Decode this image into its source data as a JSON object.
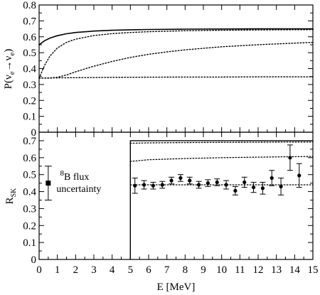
{
  "chart_data": [
    {
      "type": "line",
      "panel": "top",
      "ylabel": "P(ν_e→ν_e)",
      "xlim": [
        0,
        15
      ],
      "ylim": [
        0,
        0.8
      ],
      "yticks": [
        "0",
        "0.1",
        "0.2",
        "0.3",
        "0.4",
        "0.5",
        "0.6",
        "0.7",
        "0.8"
      ],
      "series": [
        {
          "style": "solid",
          "x": [
            0,
            0.3,
            0.6,
            1,
            1.5,
            2,
            3,
            4,
            5,
            6,
            8,
            10,
            12,
            15
          ],
          "y": [
            0.55,
            0.575,
            0.592,
            0.607,
            0.619,
            0.627,
            0.636,
            0.641,
            0.644,
            0.646,
            0.648,
            0.649,
            0.65,
            0.65
          ]
        },
        {
          "style": "dotted",
          "x": [
            0,
            0.3,
            0.6,
            1,
            1.5,
            2,
            3,
            4,
            5,
            6,
            8,
            10,
            12,
            15
          ],
          "y": [
            0.34,
            0.42,
            0.48,
            0.53,
            0.565,
            0.585,
            0.608,
            0.62,
            0.627,
            0.632,
            0.638,
            0.641,
            0.643,
            0.645
          ]
        },
        {
          "style": "dotted",
          "x": [
            0,
            0.5,
            1,
            1.5,
            2,
            3,
            4,
            5,
            6,
            7,
            8,
            10,
            12,
            14,
            15
          ],
          "y": [
            0.34,
            0.34,
            0.345,
            0.36,
            0.38,
            0.415,
            0.445,
            0.47,
            0.49,
            0.505,
            0.518,
            0.537,
            0.55,
            0.56,
            0.565
          ]
        },
        {
          "style": "dotted",
          "x": [
            0,
            1,
            2,
            4,
            6,
            8,
            10,
            12,
            15
          ],
          "y": [
            0.34,
            0.342,
            0.343,
            0.345,
            0.346,
            0.347,
            0.347,
            0.348,
            0.348
          ]
        }
      ]
    },
    {
      "type": "scatter",
      "panel": "bottom",
      "ylabel": "R_SK",
      "xlabel": "E  [MeV]",
      "xlim": [
        0,
        15
      ],
      "ylim": [
        0,
        0.75
      ],
      "xticks": [
        "0",
        "1",
        "2",
        "3",
        "4",
        "5",
        "6",
        "7",
        "8",
        "9",
        "10",
        "11",
        "12",
        "13",
        "14",
        "15"
      ],
      "yticks": [
        "0",
        "0.1",
        "0.2",
        "0.3",
        "0.4",
        "0.5",
        "0.6",
        "0.7"
      ],
      "data_points": {
        "x": [
          5.25,
          5.75,
          6.25,
          6.75,
          7.25,
          7.75,
          8.25,
          8.75,
          9.25,
          9.75,
          10.25,
          10.75,
          11.25,
          11.75,
          12.25,
          12.75,
          13.25,
          13.75,
          14.25
        ],
        "y": [
          0.435,
          0.44,
          0.435,
          0.44,
          0.465,
          0.48,
          0.465,
          0.44,
          0.45,
          0.455,
          0.44,
          0.405,
          0.455,
          0.425,
          0.42,
          0.48,
          0.43,
          0.6,
          0.495
        ],
        "err": [
          0.045,
          0.025,
          0.02,
          0.02,
          0.02,
          0.02,
          0.02,
          0.02,
          0.02,
          0.02,
          0.025,
          0.025,
          0.03,
          0.03,
          0.035,
          0.045,
          0.05,
          0.075,
          0.07
        ]
      },
      "lines": [
        {
          "style": "solid",
          "x": [
            5,
            15
          ],
          "y": [
            0.7,
            0.7
          ],
          "vertical_drop_at": 5
        },
        {
          "style": "dotted",
          "x": [
            5,
            6,
            8,
            10,
            12,
            14,
            15
          ],
          "y": [
            0.685,
            0.687,
            0.689,
            0.69,
            0.691,
            0.692,
            0.692
          ]
        },
        {
          "style": "dotted",
          "x": [
            5,
            6,
            8,
            10,
            12,
            14,
            15
          ],
          "y": [
            0.578,
            0.588,
            0.595,
            0.6,
            0.603,
            0.606,
            0.607
          ]
        },
        {
          "style": "dotted",
          "x": [
            5,
            15
          ],
          "y": [
            0.44,
            0.44
          ]
        }
      ],
      "flux_uncertainty": {
        "x": 0.5,
        "y": 0.45,
        "low": 0.35,
        "high": 0.55
      },
      "annotation": {
        "superscript": "8",
        "line1": "B flux",
        "line2": "uncertainty"
      }
    }
  ]
}
